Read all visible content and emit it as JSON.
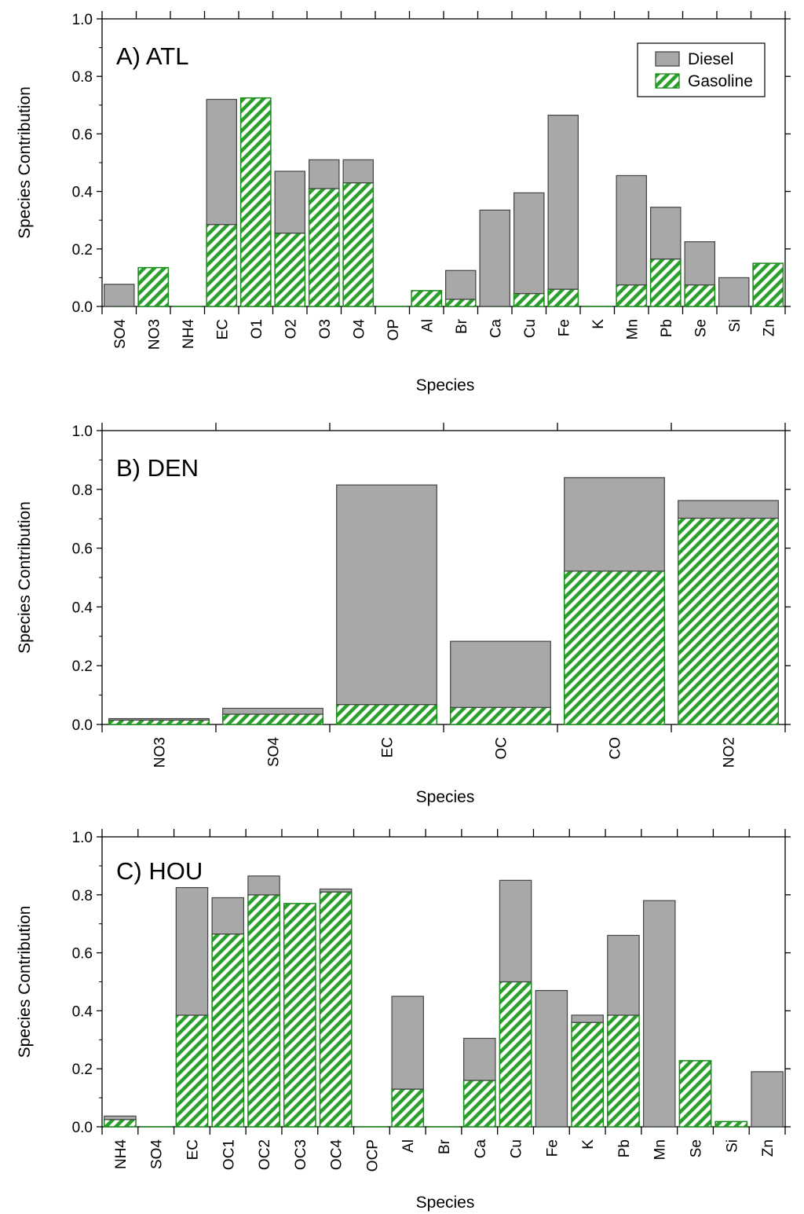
{
  "colors": {
    "diesel_fill": "#a8a8a8",
    "diesel_stroke": "#444444",
    "gasoline_stripe": "#2ca02c",
    "gasoline_bg": "#ffffff",
    "gasoline_stroke": "#1a8a1a",
    "axis": "#000000"
  },
  "chart_data": [
    {
      "type": "bar",
      "stacked": true,
      "title": "A) ATL",
      "xlabel": "Species",
      "ylabel": "Species Contribution",
      "ylim": [
        0,
        1.0
      ],
      "yticks": [
        "0.0",
        "0.2",
        "0.4",
        "0.6",
        "0.8",
        "1.0"
      ],
      "legend": {
        "position": "top-right",
        "entries": [
          "Diesel",
          "Gasoline"
        ]
      },
      "categories": [
        "SO4",
        "NO3",
        "NH4",
        "EC",
        "O1",
        "O2",
        "O3",
        "O4",
        "OP",
        "Al",
        "Br",
        "Ca",
        "Cu",
        "Fe",
        "K",
        "Mn",
        "Pb",
        "Se",
        "Si",
        "Zn"
      ],
      "series": [
        {
          "name": "Gasoline",
          "values": [
            0.0,
            0.135,
            0.0,
            0.285,
            0.725,
            0.255,
            0.41,
            0.43,
            0.0,
            0.055,
            0.025,
            0.0,
            0.045,
            0.06,
            0.0,
            0.075,
            0.165,
            0.075,
            0.0,
            0.15
          ]
        },
        {
          "name": "Diesel",
          "values": [
            0.077,
            0.0,
            0.0,
            0.435,
            0.0,
            0.215,
            0.1,
            0.08,
            0.0,
            0.0,
            0.1,
            0.335,
            0.35,
            0.605,
            0.0,
            0.38,
            0.18,
            0.15,
            0.1,
            0.0
          ]
        }
      ]
    },
    {
      "type": "bar",
      "stacked": true,
      "title": "B) DEN",
      "xlabel": "Species",
      "ylabel": "Species Contribution",
      "ylim": [
        0,
        1.0
      ],
      "yticks": [
        "0.0",
        "0.2",
        "0.4",
        "0.6",
        "0.8",
        "1.0"
      ],
      "categories": [
        "NO3",
        "SO4",
        "EC",
        "OC",
        "CO",
        "NO2"
      ],
      "series": [
        {
          "name": "Gasoline",
          "values": [
            0.015,
            0.035,
            0.068,
            0.058,
            0.522,
            0.702
          ]
        },
        {
          "name": "Diesel",
          "values": [
            0.005,
            0.02,
            0.747,
            0.225,
            0.318,
            0.06
          ]
        }
      ]
    },
    {
      "type": "bar",
      "stacked": true,
      "title": "C) HOU",
      "xlabel": "Species",
      "ylabel": "Species Contribution",
      "ylim": [
        0,
        1.0
      ],
      "yticks": [
        "0.0",
        "0.2",
        "0.4",
        "0.6",
        "0.8",
        "1.0"
      ],
      "categories": [
        "NH4",
        "SO4",
        "EC",
        "OC1",
        "OC2",
        "OC3",
        "OC4",
        "OCP",
        "Al",
        "Br",
        "Ca",
        "Cu",
        "Fe",
        "K",
        "Pb",
        "Mn",
        "Se",
        "Si",
        "Zn"
      ],
      "series": [
        {
          "name": "Gasoline",
          "values": [
            0.025,
            0.0,
            0.385,
            0.665,
            0.8,
            0.77,
            0.81,
            0.0,
            0.13,
            0.0,
            0.16,
            0.5,
            0.0,
            0.36,
            0.385,
            0.0,
            0.228,
            0.018,
            0.0
          ]
        },
        {
          "name": "Diesel",
          "values": [
            0.012,
            0.0,
            0.44,
            0.125,
            0.065,
            0.0,
            0.01,
            0.0,
            0.32,
            0.0,
            0.145,
            0.35,
            0.47,
            0.025,
            0.275,
            0.78,
            0.0,
            0.0,
            0.19
          ]
        }
      ]
    }
  ]
}
